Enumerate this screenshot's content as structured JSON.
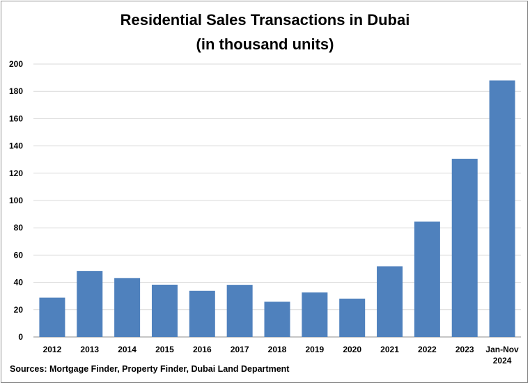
{
  "chart_data": {
    "type": "bar",
    "title": "Residential Sales Transactions in Dubai",
    "subtitle": "(in thousand units)",
    "source": "Sources: Mortgage Finder, Property Finder, Dubai Land Department",
    "categories": [
      [
        "2012"
      ],
      [
        "2013"
      ],
      [
        "2014"
      ],
      [
        "2015"
      ],
      [
        "2016"
      ],
      [
        "2017"
      ],
      [
        "2018"
      ],
      [
        "2019"
      ],
      [
        "2020"
      ],
      [
        "2021"
      ],
      [
        "2022"
      ],
      [
        "2023"
      ],
      [
        "Jan-Nov",
        "2024"
      ]
    ],
    "values": [
      28.8,
      48.4,
      43.2,
      38.3,
      33.8,
      38.2,
      25.8,
      32.6,
      28.1,
      51.8,
      84.5,
      130.6,
      188.0
    ],
    "ylim": [
      0,
      200
    ],
    "yticks": [
      0,
      20,
      40,
      60,
      80,
      100,
      120,
      140,
      160,
      180,
      200
    ],
    "xlabel": "",
    "ylabel": "",
    "grid": true,
    "legend": "none",
    "colors": {
      "bar": "#4f81bd",
      "grid": "#d9d9d9",
      "axis": "#8c8c8c"
    }
  }
}
